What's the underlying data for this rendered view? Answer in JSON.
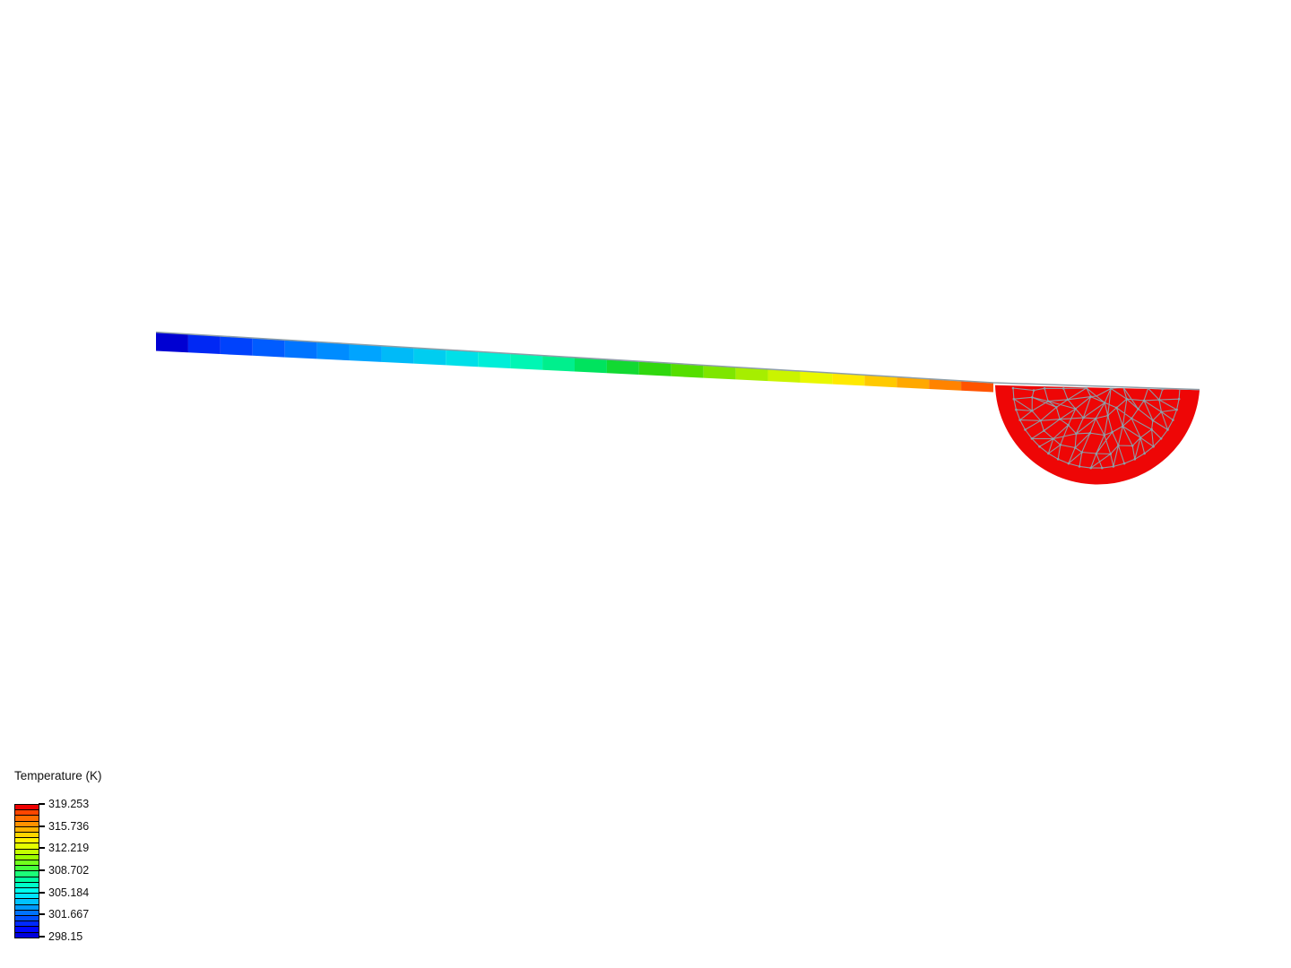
{
  "page": {
    "background": "#ffffff"
  },
  "legend": {
    "title": "Temperature (K)",
    "unit": "K",
    "max": 319.253,
    "min": 298.15,
    "tick_labels": [
      "319.253",
      "315.736",
      "312.219",
      "308.702",
      "305.184",
      "301.667",
      "298.15"
    ],
    "band_colors_top_to_bottom": [
      "#ee0000",
      "#ff4600",
      "#ff6e00",
      "#ff9100",
      "#ffb300",
      "#ffd500",
      "#fff200",
      "#e4ff00",
      "#c2ff00",
      "#9aff00",
      "#70ff1c",
      "#44ff3c",
      "#1cff78",
      "#00ffa2",
      "#00ffc8",
      "#00ffee",
      "#00e4ff",
      "#00c2ff",
      "#009aff",
      "#0072ff",
      "#004eff",
      "#002aff",
      "#0008ff",
      "#0000dc"
    ],
    "border_color": "#000000",
    "text_color": "#111111"
  },
  "viewport": {
    "beam_band_colors_left_to_right": [
      "#0000d2",
      "#0028f4",
      "#0042fc",
      "#005cff",
      "#0074ff",
      "#008cff",
      "#00a4ff",
      "#00baf8",
      "#00cdf0",
      "#00dfe8",
      "#00eed8",
      "#00f6b4",
      "#00ef8d",
      "#00e35e",
      "#12d932",
      "#30d70e",
      "#55de00",
      "#7ee600",
      "#a6ee00",
      "#caf400",
      "#e9f800",
      "#ffe900",
      "#ffc900",
      "#ffa800",
      "#ff8300",
      "#ff5400"
    ],
    "bowl_fill": "#ee0606",
    "mesh_line_color": "#8aa0aa",
    "edge_line_color": "#8d9ea8"
  }
}
